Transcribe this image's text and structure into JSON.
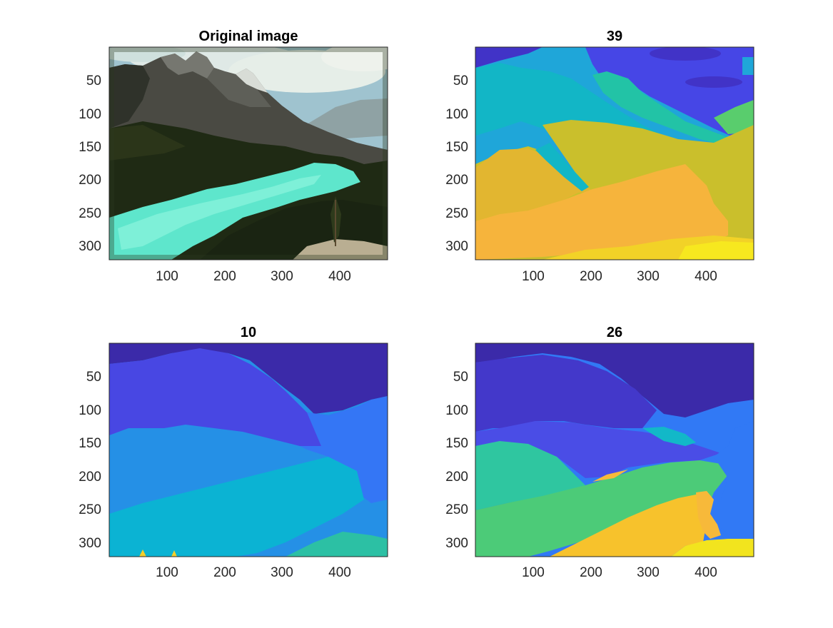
{
  "figure": {
    "panels": [
      {
        "title": "Original image",
        "kind": "image",
        "x_ticks": [
          "100",
          "200",
          "300",
          "400"
        ],
        "y_ticks": [
          "50",
          "100",
          "150",
          "200",
          "250",
          "300"
        ],
        "palette": {
          "sky": "#9fc3cf",
          "cloud": "#e6eee8",
          "mountain_far": "#6b6c66",
          "mountain_near": "#3a3a34",
          "snow": "#d8dcd6",
          "forest": "#1f2a14",
          "forest_light": "#3d4a22",
          "lake": "#5ee6cc",
          "lake_light": "#7ef0d8",
          "rock": "#b9ae92"
        }
      },
      {
        "title": "39",
        "kind": "segmentation",
        "x_ticks": [
          "100",
          "200",
          "300",
          "400"
        ],
        "y_ticks": [
          "50",
          "100",
          "150",
          "200",
          "250",
          "300"
        ],
        "palette": [
          "#4133c7",
          "#4646e6",
          "#1fa6d9",
          "#12b6c6",
          "#22c3a6",
          "#59cd6d",
          "#b7c12e",
          "#cabf2c",
          "#e2b630",
          "#f6b43c",
          "#f2d227",
          "#f7e81f"
        ]
      },
      {
        "title": "10",
        "kind": "segmentation",
        "x_ticks": [
          "100",
          "200",
          "300",
          "400"
        ],
        "y_ticks": [
          "50",
          "100",
          "150",
          "200",
          "250",
          "300"
        ],
        "palette": [
          "#3b2aa9",
          "#4847e3",
          "#3476f5",
          "#2590e6",
          "#0bb3d3",
          "#2cc0a4",
          "#f5cf2a"
        ]
      },
      {
        "title": "26",
        "kind": "segmentation",
        "x_ticks": [
          "100",
          "200",
          "300",
          "400"
        ],
        "y_ticks": [
          "50",
          "100",
          "150",
          "200",
          "250",
          "300"
        ],
        "palette": [
          "#3b2aa9",
          "#4338ca",
          "#4a4de6",
          "#3179f5",
          "#12b8c8",
          "#2fc6a0",
          "#4ccb78",
          "#f7b93a",
          "#f7c22c",
          "#f2e41e"
        ]
      }
    ]
  },
  "chart_data": [
    {
      "type": "heatmap",
      "title": "Original image",
      "xlim": [
        0.5,
        481.5
      ],
      "ylim": [
        0.5,
        321.5
      ],
      "y_reversed": true,
      "xticks": [
        100,
        200,
        300,
        400
      ],
      "yticks": [
        50,
        100,
        150,
        200,
        250,
        300
      ],
      "grid": false
    },
    {
      "type": "heatmap",
      "title": "39",
      "xlim": [
        0.5,
        481.5
      ],
      "ylim": [
        0.5,
        321.5
      ],
      "y_reversed": true,
      "xticks": [
        100,
        200,
        300,
        400
      ],
      "yticks": [
        50,
        100,
        150,
        200,
        250,
        300
      ],
      "grid": false
    },
    {
      "type": "heatmap",
      "title": "10",
      "xlim": [
        0.5,
        481.5
      ],
      "ylim": [
        0.5,
        321.5
      ],
      "y_reversed": true,
      "xticks": [
        100,
        200,
        300,
        400
      ],
      "yticks": [
        50,
        100,
        150,
        200,
        250,
        300
      ],
      "grid": false
    },
    {
      "type": "heatmap",
      "title": "26",
      "xlim": [
        0.5,
        481.5
      ],
      "ylim": [
        0.5,
        321.5
      ],
      "y_reversed": true,
      "xticks": [
        100,
        200,
        300,
        400
      ],
      "yticks": [
        50,
        100,
        150,
        200,
        250,
        300
      ],
      "grid": false
    }
  ]
}
